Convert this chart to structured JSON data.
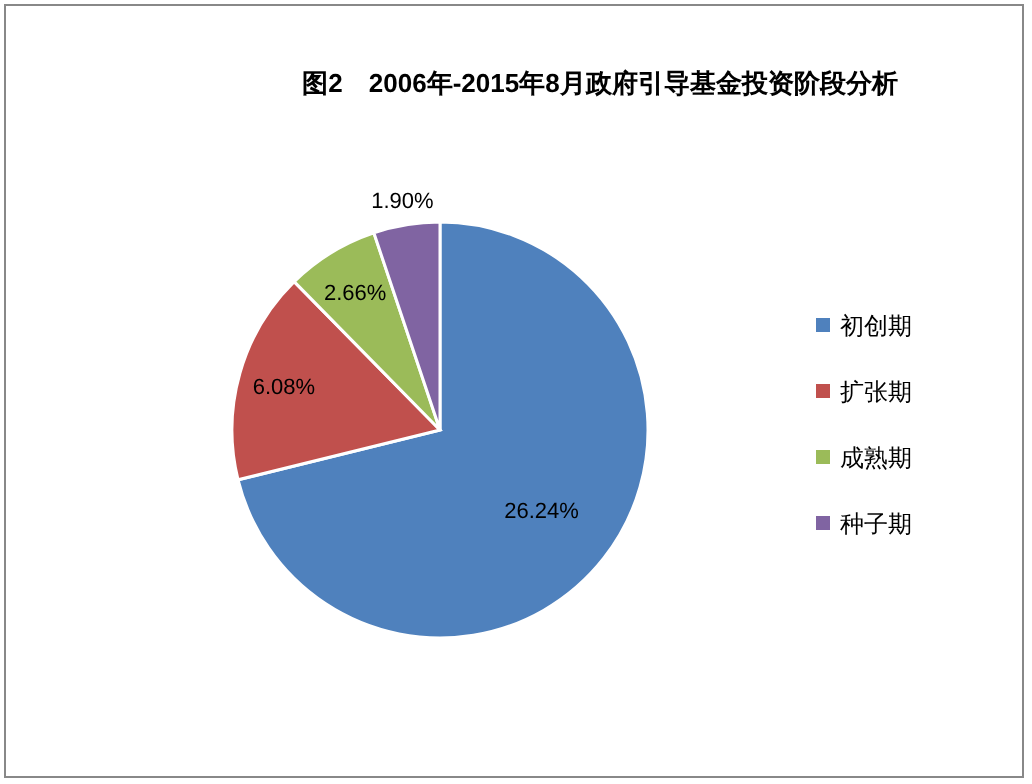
{
  "chart_data": {
    "type": "pie",
    "title": "图2　2006年-2015年8月政府引导基金投资阶段分析",
    "categories": [
      "初创期",
      "扩张期",
      "成熟期",
      "种子期"
    ],
    "values": [
      26.24,
      6.08,
      2.66,
      1.9
    ],
    "colors": [
      "#4f81bd",
      "#c0504d",
      "#9bbb59",
      "#8064a2"
    ],
    "value_labels": [
      "26.24%",
      "6.08%",
      "2.66%",
      "1.90%"
    ],
    "legend": "right"
  }
}
